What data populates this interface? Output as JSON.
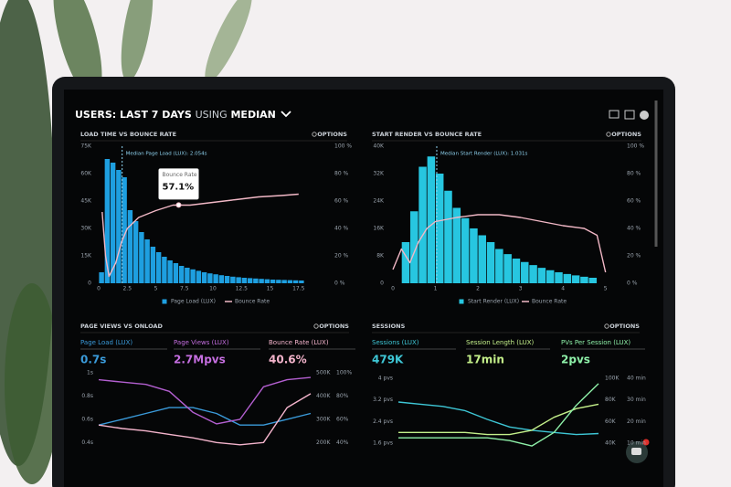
{
  "header": {
    "prefix": "USERS:",
    "range": "LAST 7 DAYS",
    "joiner": "USING",
    "method": "MEDIAN"
  },
  "options": "OPTIONS",
  "chart_data": [
    {
      "type": "histogram",
      "title": "LOAD TIME VS BOUNCE RATE",
      "median": 2.054,
      "annotation": "Median Page Load (LUX): 2.054s",
      "tooltip": {
        "title": "Bounce Rate",
        "label": "57.1%",
        "x": 7,
        "value": 57.1
      },
      "bins": [
        0,
        0.5,
        1,
        1.5,
        2,
        2.5,
        3,
        3.5,
        4,
        4.5,
        5,
        5.5,
        6,
        6.5,
        7,
        7.5,
        8,
        8.5,
        9,
        9.5,
        10,
        10.5,
        11,
        11.5,
        12,
        12.5,
        13,
        13.5,
        14,
        14.5,
        15,
        15.5,
        16,
        16.5,
        17,
        17.5,
        18
      ],
      "series": [
        {
          "name": "Page Load (LUX)",
          "color": "#1e9fe0",
          "values": [
            6000,
            68000,
            66000,
            62000,
            58000,
            40000,
            34000,
            28000,
            24000,
            20000,
            17000,
            14500,
            12500,
            11000,
            9500,
            8500,
            7600,
            6800,
            6000,
            5400,
            4900,
            4400,
            4000,
            3600,
            3300,
            3000,
            2800,
            2600,
            2400,
            2200,
            2000,
            1900,
            1800,
            1700,
            1600,
            1500
          ]
        },
        {
          "name": "Bounce Rate",
          "color": "#f2b8c6",
          "axis": "y2",
          "x": [
            0.3,
            0.6,
            0.9,
            1.5,
            2,
            2.5,
            3.5,
            5,
            6.5,
            8,
            10,
            12,
            14,
            16,
            17.5
          ],
          "values": [
            52,
            20,
            5,
            15,
            30,
            40,
            48,
            53,
            57,
            57,
            59,
            61,
            63,
            64,
            65
          ]
        }
      ],
      "xlim": [
        0,
        20
      ],
      "xticks": [
        0,
        2.5,
        5,
        7.5,
        10,
        12.5,
        15,
        17.5
      ],
      "ylim": [
        0,
        75000
      ],
      "yticks": [
        {
          "value": 0,
          "label": "0"
        },
        {
          "value": 15000,
          "label": "15K"
        },
        {
          "value": 30000,
          "label": "30K"
        },
        {
          "value": 45000,
          "label": "45K"
        },
        {
          "value": 60000,
          "label": "60K"
        },
        {
          "value": 75000,
          "label": "75K"
        }
      ],
      "y2lim": [
        0,
        100
      ],
      "y2ticks": [
        {
          "value": 0,
          "label": "0 %"
        },
        {
          "value": 20,
          "label": "20 %"
        },
        {
          "value": 40,
          "label": "40 %"
        },
        {
          "value": 60,
          "label": "60 %"
        },
        {
          "value": 80,
          "label": "80 %"
        },
        {
          "value": 100,
          "label": "100 %"
        }
      ]
    },
    {
      "type": "histogram",
      "title": "START RENDER VS BOUNCE RATE",
      "median": 1.031,
      "annotation": "Median Start Render (LUX): 1.031s",
      "bins": [
        0.2,
        0.4,
        0.6,
        0.8,
        1,
        1.2,
        1.4,
        1.6,
        1.8,
        2,
        2.2,
        2.4,
        2.6,
        2.8,
        3,
        3.2,
        3.4,
        3.6,
        3.8,
        4,
        4.2,
        4.4,
        4.6,
        4.8
      ],
      "series": [
        {
          "name": "Start Render (LUX)",
          "color": "#27c6e0",
          "values": [
            12000,
            21000,
            34000,
            37000,
            32000,
            27000,
            22000,
            19000,
            16000,
            14000,
            12000,
            10000,
            8500,
            7200,
            6200,
            5300,
            4500,
            3800,
            3200,
            2700,
            2300,
            1900,
            1600
          ]
        },
        {
          "name": "Bounce Rate",
          "color": "#f2b8c6",
          "axis": "y2",
          "x": [
            0,
            0.2,
            0.4,
            0.6,
            0.8,
            1,
            1.5,
            2,
            2.5,
            3,
            3.5,
            4,
            4.5,
            4.8,
            5
          ],
          "values": [
            10,
            25,
            15,
            30,
            40,
            45,
            48,
            50,
            50,
            48,
            45,
            42,
            40,
            35,
            8
          ]
        }
      ],
      "xlim": [
        0,
        5.2
      ],
      "xticks": [
        0,
        1,
        2,
        3,
        4,
        5
      ],
      "ylim": [
        0,
        40000
      ],
      "yticks": [
        {
          "value": 0,
          "label": "0"
        },
        {
          "value": 8000,
          "label": "8K"
        },
        {
          "value": 16000,
          "label": "16K"
        },
        {
          "value": 24000,
          "label": "24K"
        },
        {
          "value": 32000,
          "label": "32K"
        },
        {
          "value": 40000,
          "label": "40K"
        }
      ],
      "y2lim": [
        0,
        100
      ],
      "y2ticks": [
        {
          "value": 0,
          "label": "0 %"
        },
        {
          "value": 20,
          "label": "20 %"
        },
        {
          "value": 40,
          "label": "40 %"
        },
        {
          "value": 60,
          "label": "60 %"
        },
        {
          "value": 80,
          "label": "80 %"
        },
        {
          "value": 100,
          "label": "100 %"
        }
      ]
    },
    {
      "type": "line",
      "title": "PAGE VIEWS VS ONLOAD",
      "kpis": [
        {
          "label": "Page Load (LUX)",
          "value": "0.7s",
          "color": "#3a9ad9"
        },
        {
          "label": "Page Views (LUX)",
          "value": "2.7Mpvs",
          "color": "#c56ee0"
        },
        {
          "label": "Bounce Rate (LUX)",
          "value": "40.6%",
          "color": "#f4b4cc"
        }
      ],
      "series": [
        {
          "name": "Page Load (LUX)",
          "color": "#3a9ad9",
          "values": [
            0.55,
            0.6,
            0.65,
            0.7,
            0.7,
            0.65,
            0.55,
            0.55,
            0.6,
            0.65
          ]
        },
        {
          "name": "Page Views (LUX)",
          "color": "#b35fd0",
          "axis": "y2",
          "values": [
            470000,
            460000,
            450000,
            420000,
            330000,
            280000,
            300000,
            440000,
            470000,
            480000
          ]
        },
        {
          "name": "Bounce Rate (LUX)",
          "color": "#f4b4cc",
          "axis": "y3",
          "values": [
            55,
            52,
            50,
            47,
            44,
            40,
            38,
            40,
            70,
            82
          ]
        }
      ],
      "ylim": [
        0.3,
        1
      ],
      "yticks": [
        {
          "value": 0.4,
          "label": "0.4s"
        },
        {
          "value": 0.6,
          "label": "0.6s"
        },
        {
          "value": 0.8,
          "label": "0.8s"
        },
        {
          "value": 1,
          "label": "1s"
        }
      ],
      "y2lim": [
        150000,
        500000
      ],
      "y2ticks": [
        {
          "value": 200000,
          "label": "200K"
        },
        {
          "value": 300000,
          "label": "300K"
        },
        {
          "value": 400000,
          "label": "400K"
        },
        {
          "value": 500000,
          "label": "500K"
        }
      ],
      "y3lim": [
        30,
        100
      ],
      "y3ticks": [
        {
          "value": 40,
          "label": "40%"
        },
        {
          "value": 60,
          "label": "60%"
        },
        {
          "value": 80,
          "label": "80%"
        },
        {
          "value": 100,
          "label": "100%"
        }
      ]
    },
    {
      "type": "line",
      "title": "SESSIONS",
      "kpis": [
        {
          "label": "Sessions (LUX)",
          "value": "479K",
          "color": "#3ec7d6"
        },
        {
          "label": "Session Length (LUX)",
          "value": "17min",
          "color": "#c4f08a"
        },
        {
          "label": "PVs Per Session (LUX)",
          "value": "2pvs",
          "color": "#8ef0a8"
        }
      ],
      "series": [
        {
          "name": "Sessions (LUX)",
          "color": "#3ec7d6",
          "axis": "y2",
          "values": [
            78000,
            76000,
            74000,
            70000,
            62000,
            55000,
            52000,
            50000,
            48000,
            49000
          ]
        },
        {
          "name": "Session Length (LUX)",
          "color": "#c4f08a",
          "axis": "y3",
          "values": [
            15,
            15,
            15,
            15,
            14,
            14,
            16,
            22,
            26,
            28
          ]
        },
        {
          "name": "PVs Per Session (LUX)",
          "color": "#8ef0a8",
          "values": [
            1.8,
            1.8,
            1.8,
            1.8,
            1.8,
            1.7,
            1.5,
            2.0,
            3.0,
            3.8
          ]
        }
      ],
      "ylim": [
        1.2,
        4.2
      ],
      "yticks": [
        {
          "value": 1.6,
          "label": "1.6 pvs"
        },
        {
          "value": 2.4,
          "label": "2.4 pvs"
        },
        {
          "value": 3.2,
          "label": "3.2 pvs"
        },
        {
          "value": 4,
          "label": "4 pvs"
        }
      ],
      "y2lim": [
        30000,
        105000
      ],
      "y2ticks": [
        {
          "value": 40000,
          "label": "40K"
        },
        {
          "value": 60000,
          "label": "60K"
        },
        {
          "value": 80000,
          "label": "80K"
        },
        {
          "value": 100000,
          "label": "100K"
        }
      ],
      "y3lim": [
        5,
        42.5
      ],
      "y3ticks": [
        {
          "value": 10,
          "label": "10 min"
        },
        {
          "value": 20,
          "label": "20 min"
        },
        {
          "value": 30,
          "label": "30 min"
        },
        {
          "value": 40,
          "label": "40 min"
        }
      ]
    }
  ]
}
